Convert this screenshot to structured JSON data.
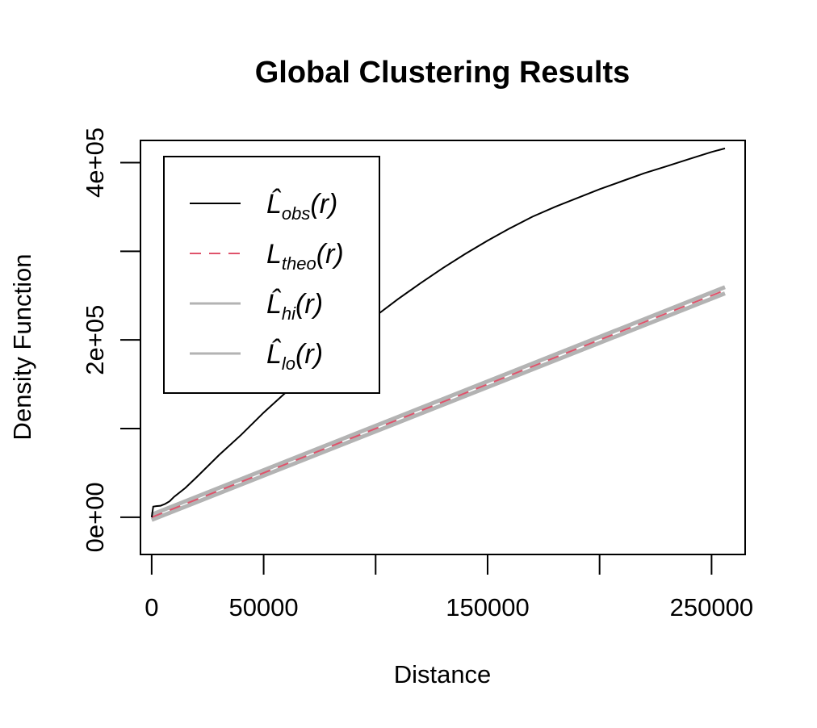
{
  "chart_data": {
    "type": "line",
    "title": "Global Clustering Results",
    "xlabel": "Distance",
    "ylabel": "Density Function",
    "xlim": [
      -5000,
      265000
    ],
    "ylim": [
      -42000,
      425000
    ],
    "x_ticks": [
      0,
      50000,
      100000,
      150000,
      200000,
      250000
    ],
    "x_tick_labels": [
      "0",
      "50000",
      "",
      "150000",
      "",
      "250000"
    ],
    "y_ticks": [
      0,
      100000,
      200000,
      300000,
      400000
    ],
    "y_tick_labels": [
      "0e+00",
      "",
      "2e+05",
      "",
      "4e+05"
    ],
    "grid": false,
    "legend_position": "top-left",
    "series": [
      {
        "name": "obs",
        "legend_main": "L̂",
        "legend_sub": "obs",
        "legend_tail": "(r)",
        "color": "#000000",
        "dash": "none",
        "width": 2,
        "x": [
          0,
          700,
          2000,
          4000,
          6000,
          8000,
          10000,
          15000,
          20000,
          30000,
          40000,
          50000,
          60000,
          70000,
          80000,
          90000,
          100000,
          110000,
          120000,
          130000,
          140000,
          150000,
          160000,
          170000,
          180000,
          190000,
          200000,
          210000,
          220000,
          230000,
          240000,
          250000,
          256000
        ],
        "y": [
          0,
          12000,
          12500,
          13000,
          15000,
          18000,
          23000,
          33000,
          45000,
          70000,
          93000,
          118000,
          141000,
          164000,
          186000,
          207000,
          227000,
          246000,
          264000,
          281000,
          297000,
          312000,
          326000,
          339000,
          350000,
          360000,
          370000,
          379000,
          388000,
          396000,
          404000,
          412000,
          416000
        ]
      },
      {
        "name": "theo",
        "legend_main": "L",
        "legend_sub": "theo",
        "legend_tail": "(r)",
        "color": "#df536b",
        "dash": "14,10",
        "width": 2,
        "x": [
          0,
          256000
        ],
        "y": [
          0,
          256000
        ]
      },
      {
        "name": "hi",
        "legend_main": "L̂",
        "legend_sub": "hi",
        "legend_tail": "(r)",
        "color": "#b3b3b3",
        "dash": "none",
        "width": 5,
        "x": [
          0,
          256000
        ],
        "y": [
          3000,
          259500
        ]
      },
      {
        "name": "lo",
        "legend_main": "L̂",
        "legend_sub": "lo",
        "legend_tail": "(r)",
        "color": "#b3b3b3",
        "dash": "none",
        "width": 5,
        "x": [
          0,
          256000
        ],
        "y": [
          -3000,
          252500
        ]
      }
    ]
  }
}
